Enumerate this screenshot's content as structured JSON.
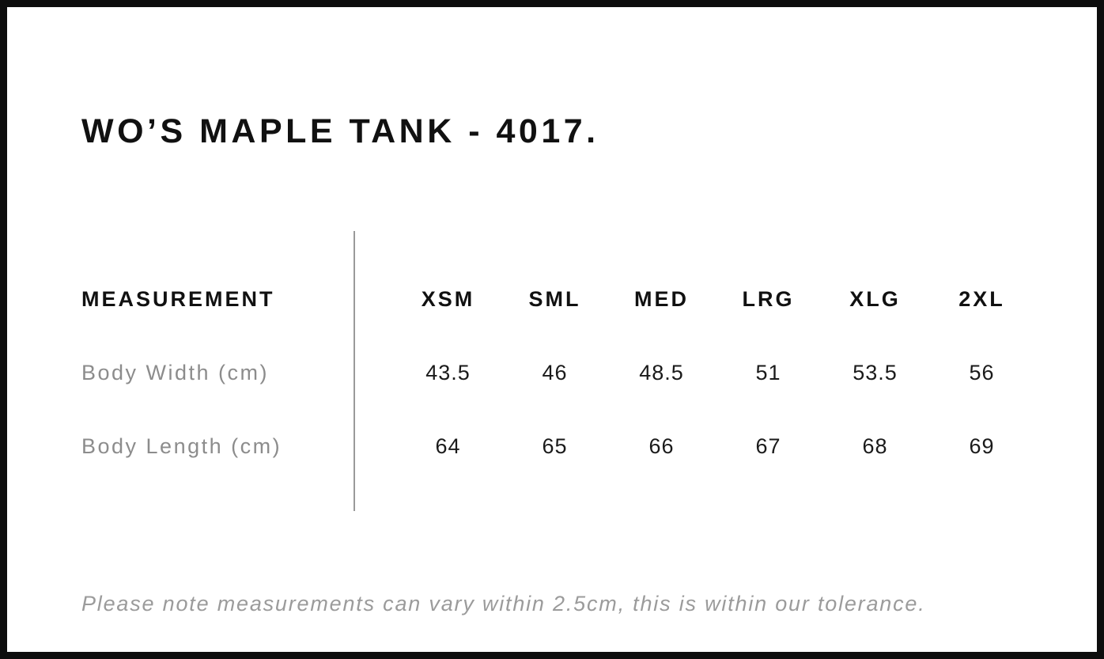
{
  "title": "WO’S MAPLE TANK - 4017.",
  "table": {
    "measurement_header": "MEASUREMENT",
    "size_headers": [
      "XSM",
      "SML",
      "MED",
      "LRG",
      "XLG",
      "2XL"
    ],
    "rows": [
      {
        "label": "Body Width (cm)",
        "values": [
          "43.5",
          "46",
          "48.5",
          "51",
          "53.5",
          "56"
        ]
      },
      {
        "label": "Body Length (cm)",
        "values": [
          "64",
          "65",
          "66",
          "67",
          "68",
          "69"
        ]
      }
    ]
  },
  "footnote": "Please note measurements can vary within 2.5cm, this is within our tolerance.",
  "colors": {
    "border": "#0d0d0d",
    "heading_text": "#111111",
    "value_text": "#1a1a1a",
    "label_text": "#8c8c8c",
    "divider": "#9a9a9a",
    "footnote_text": "#9b9b9b",
    "background": "#ffffff"
  },
  "chart_data": {
    "type": "table",
    "title": "WO’S MAPLE TANK - 4017.",
    "columns": [
      "MEASUREMENT",
      "XSM",
      "SML",
      "MED",
      "LRG",
      "XLG",
      "2XL"
    ],
    "rows": [
      [
        "Body Width (cm)",
        43.5,
        46,
        48.5,
        51,
        53.5,
        56
      ],
      [
        "Body Length (cm)",
        64,
        65,
        66,
        67,
        68,
        69
      ]
    ],
    "footnote": "Please note measurements can vary within 2.5cm, this is within our tolerance.",
    "layout_hints": {
      "label_column_divider": true,
      "grid": "off",
      "value_alignment": "center"
    }
  }
}
